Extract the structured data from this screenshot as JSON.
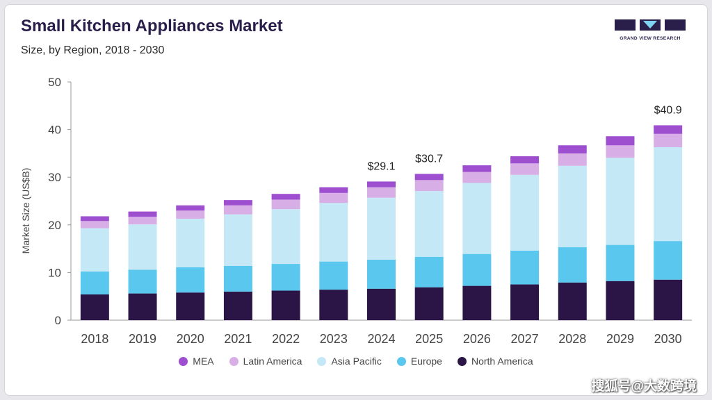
{
  "header": {
    "title": "Small Kitchen Appliances Market",
    "subtitle": "Size, by Region, 2018 - 2030"
  },
  "logo": {
    "text": "GRAND VIEW RESEARCH",
    "color": "#2a1f4a",
    "accent": "#7fd3f0"
  },
  "watermark": "搜狐号@大数跨境",
  "colors": {
    "North America": "#2b1546",
    "Europe": "#5ac8ee",
    "Asia Pacific": "#c4e8f6",
    "Latin America": "#d7aee6",
    "MEA": "#9e4fcf"
  },
  "chart_data": {
    "type": "bar",
    "stacked": true,
    "title": "Small Kitchen Appliances Market",
    "subtitle": "Size, by Region, 2018 - 2030",
    "xlabel": "",
    "ylabel": "Market Size (US$B)",
    "ylim": [
      0,
      50
    ],
    "yticks": [
      0,
      10,
      20,
      30,
      40,
      50
    ],
    "grid": false,
    "legend_position": "bottom",
    "categories": [
      "2018",
      "2019",
      "2020",
      "2021",
      "2022",
      "2023",
      "2024",
      "2025",
      "2026",
      "2027",
      "2028",
      "2029",
      "2030"
    ],
    "series": [
      {
        "name": "North America",
        "values": [
          5.4,
          5.6,
          5.8,
          6.0,
          6.2,
          6.4,
          6.6,
          6.9,
          7.2,
          7.5,
          7.9,
          8.2,
          8.5
        ]
      },
      {
        "name": "Europe",
        "values": [
          4.8,
          5.0,
          5.3,
          5.4,
          5.6,
          5.9,
          6.1,
          6.4,
          6.7,
          7.1,
          7.4,
          7.6,
          8.1
        ]
      },
      {
        "name": "Asia Pacific",
        "values": [
          9.1,
          9.5,
          10.2,
          10.8,
          11.5,
          12.3,
          13.0,
          13.8,
          14.9,
          15.9,
          17.1,
          18.3,
          19.7
        ]
      },
      {
        "name": "Latin America",
        "values": [
          1.5,
          1.6,
          1.7,
          1.9,
          2.0,
          2.1,
          2.2,
          2.3,
          2.3,
          2.4,
          2.6,
          2.6,
          2.8
        ]
      },
      {
        "name": "MEA",
        "values": [
          1.0,
          1.1,
          1.1,
          1.1,
          1.2,
          1.2,
          1.2,
          1.3,
          1.4,
          1.5,
          1.7,
          1.9,
          1.8
        ]
      }
    ],
    "legend_order": [
      "MEA",
      "Latin America",
      "Asia Pacific",
      "Europe",
      "North America"
    ],
    "annotations": [
      {
        "category": "2024",
        "label": "$29.1"
      },
      {
        "category": "2025",
        "label": "$30.7"
      },
      {
        "category": "2030",
        "label": "$40.9"
      }
    ]
  }
}
